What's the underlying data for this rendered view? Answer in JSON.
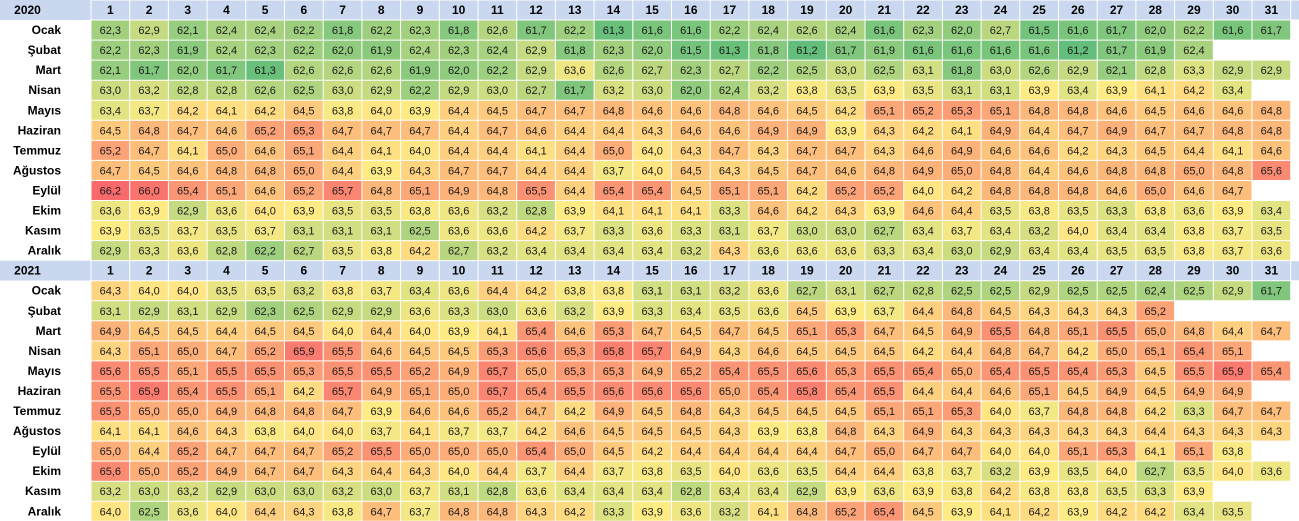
{
  "chart_data": {
    "type": "heatmap",
    "columns": [
      "1",
      "2",
      "3",
      "4",
      "5",
      "6",
      "7",
      "8",
      "9",
      "10",
      "11",
      "12",
      "13",
      "14",
      "15",
      "16",
      "17",
      "18",
      "19",
      "20",
      "21",
      "22",
      "23",
      "24",
      "25",
      "26",
      "27",
      "28",
      "29",
      "30",
      "31"
    ],
    "color_scale": {
      "low": "#63be7b",
      "mid": "#ffeb84",
      "high": "#f8696b",
      "min": 61.2,
      "mid_value": 63.9,
      "max": 66.2
    },
    "blocks": [
      {
        "year": "2020",
        "rows": [
          {
            "month": "Ocak",
            "values": [
              "62,3",
              "62,9",
              "62,1",
              "62,4",
              "62,4",
              "62,2",
              "61,8",
              "62,2",
              "62,3",
              "61,8",
              "62,6",
              "61,7",
              "62,2",
              "61,3",
              "61,6",
              "61,6",
              "62,2",
              "62,4",
              "62,6",
              "62,4",
              "61,6",
              "62,3",
              "62,0",
              "62,7",
              "61,5",
              "61,6",
              "61,7",
              "62,0",
              "62,2",
              "61,6",
              "61,7"
            ]
          },
          {
            "month": "Şubat",
            "values": [
              "62,2",
              "62,3",
              "61,9",
              "62,4",
              "62,3",
              "62,2",
              "62,0",
              "61,9",
              "62,4",
              "62,3",
              "62,4",
              "62,9",
              "61,8",
              "62,3",
              "62,0",
              "61,5",
              "61,3",
              "61,8",
              "61,2",
              "61,7",
              "61,9",
              "61,6",
              "61,6",
              "61,6",
              "61,6",
              "61,2",
              "61,7",
              "61,9",
              "62,4",
              "",
              ""
            ]
          },
          {
            "month": "Mart",
            "values": [
              "62,1",
              "61,7",
              "62,0",
              "61,7",
              "61,3",
              "62,6",
              "62,6",
              "62,6",
              "61,9",
              "62,0",
              "62,2",
              "62,9",
              "63,6",
              "62,6",
              "62,7",
              "62,3",
              "62,7",
              "62,2",
              "62,5",
              "63,0",
              "62,5",
              "63,1",
              "61,8",
              "63,0",
              "62,6",
              "62,9",
              "62,1",
              "62,8",
              "63,3",
              "62,9",
              "62,9"
            ]
          },
          {
            "month": "Nisan",
            "values": [
              "63,0",
              "63,2",
              "62,8",
              "62,8",
              "62,6",
              "62,5",
              "63,0",
              "62,9",
              "62,2",
              "62,9",
              "63,0",
              "62,7",
              "61,7",
              "63,2",
              "63,0",
              "62,0",
              "62,4",
              "63,2",
              "63,8",
              "63,5",
              "63,9",
              "63,5",
              "63,1",
              "63,1",
              "63,9",
              "63,4",
              "63,9",
              "64,1",
              "64,2",
              "63,4",
              ""
            ]
          },
          {
            "month": "Mayıs",
            "values": [
              "63,4",
              "63,7",
              "64,2",
              "64,1",
              "64,2",
              "64,5",
              "63,8",
              "64,0",
              "63,9",
              "64,4",
              "64,5",
              "64,7",
              "64,7",
              "64,8",
              "64,6",
              "64,6",
              "64,8",
              "64,6",
              "64,5",
              "64,2",
              "65,1",
              "65,2",
              "65,3",
              "65,1",
              "64,8",
              "64,8",
              "64,6",
              "64,5",
              "64,6",
              "64,6",
              "64,8"
            ]
          },
          {
            "month": "Haziran",
            "values": [
              "64,5",
              "64,8",
              "64,7",
              "64,6",
              "65,2",
              "65,3",
              "64,7",
              "64,7",
              "64,7",
              "64,4",
              "64,7",
              "64,6",
              "64,4",
              "64,4",
              "64,3",
              "64,6",
              "64,6",
              "64,9",
              "64,9",
              "63,9",
              "64,3",
              "64,2",
              "64,1",
              "64,9",
              "64,4",
              "64,7",
              "64,9",
              "64,7",
              "64,7",
              "64,8",
              "64,8"
            ]
          },
          {
            "month": "Temmuz",
            "values": [
              "65,2",
              "64,7",
              "64,1",
              "65,0",
              "64,6",
              "65,1",
              "64,4",
              "64,1",
              "64,0",
              "64,4",
              "64,4",
              "64,1",
              "64,4",
              "65,0",
              "64,0",
              "64,3",
              "64,7",
              "64,3",
              "64,7",
              "64,7",
              "64,3",
              "64,6",
              "64,9",
              "64,6",
              "64,6",
              "64,2",
              "64,3",
              "64,5",
              "64,4",
              "64,1",
              "64,6"
            ]
          },
          {
            "month": "Ağustos",
            "values": [
              "64,7",
              "64,5",
              "64,6",
              "64,8",
              "64,8",
              "65,0",
              "64,4",
              "63,9",
              "64,3",
              "64,7",
              "64,7",
              "64,4",
              "64,4",
              "63,7",
              "64,0",
              "64,5",
              "64,3",
              "64,5",
              "64,7",
              "64,6",
              "64,8",
              "64,9",
              "65,0",
              "64,8",
              "64,4",
              "64,6",
              "64,8",
              "64,8",
              "65,0",
              "64,8",
              "65,6"
            ]
          },
          {
            "month": "Eylül",
            "values": [
              "66,2",
              "66,0",
              "65,4",
              "65,1",
              "64,6",
              "65,2",
              "65,7",
              "64,8",
              "65,1",
              "64,9",
              "64,8",
              "65,5",
              "64,4",
              "65,4",
              "65,4",
              "64,5",
              "65,1",
              "65,1",
              "64,2",
              "65,2",
              "65,2",
              "64,0",
              "64,2",
              "64,8",
              "64,8",
              "64,8",
              "64,6",
              "65,0",
              "64,6",
              "64,7",
              ""
            ]
          },
          {
            "month": "Ekim",
            "values": [
              "63,6",
              "63,9",
              "62,9",
              "63,6",
              "64,0",
              "63,9",
              "63,5",
              "63,5",
              "63,8",
              "63,6",
              "63,2",
              "62,8",
              "63,9",
              "64,1",
              "64,1",
              "64,1",
              "63,3",
              "64,6",
              "64,2",
              "64,3",
              "63,9",
              "64,6",
              "64,4",
              "63,5",
              "63,8",
              "63,5",
              "63,3",
              "63,8",
              "63,6",
              "63,9",
              "63,4"
            ]
          },
          {
            "month": "Kasım",
            "values": [
              "63,9",
              "63,5",
              "63,7",
              "63,5",
              "63,7",
              "63,1",
              "63,1",
              "63,1",
              "62,5",
              "63,6",
              "63,6",
              "64,2",
              "63,7",
              "63,3",
              "63,6",
              "63,3",
              "63,1",
              "63,7",
              "63,0",
              "63,0",
              "62,7",
              "63,4",
              "63,7",
              "63,4",
              "63,2",
              "64,0",
              "63,4",
              "63,4",
              "63,8",
              "63,7",
              "63,5"
            ]
          },
          {
            "month": "Aralık",
            "values": [
              "62,9",
              "63,3",
              "63,6",
              "62,8",
              "62,2",
              "62,7",
              "63,5",
              "63,8",
              "64,2",
              "62,7",
              "63,2",
              "63,4",
              "63,4",
              "63,4",
              "63,4",
              "63,2",
              "64,3",
              "63,6",
              "63,6",
              "63,6",
              "63,3",
              "63,4",
              "63,0",
              "62,9",
              "63,4",
              "63,4",
              "63,5",
              "63,5",
              "63,8",
              "63,7",
              "63,6"
            ]
          }
        ]
      },
      {
        "year": "2021",
        "rows": [
          {
            "month": "Ocak",
            "values": [
              "64,3",
              "64,0",
              "64,0",
              "63,5",
              "63,5",
              "63,2",
              "63,8",
              "63,7",
              "63,4",
              "63,6",
              "64,4",
              "64,2",
              "63,8",
              "63,8",
              "63,1",
              "63,1",
              "63,2",
              "63,6",
              "62,7",
              "63,1",
              "62,7",
              "62,8",
              "62,5",
              "62,5",
              "62,9",
              "62,5",
              "62,5",
              "62,4",
              "62,5",
              "62,9",
              "61,7"
            ]
          },
          {
            "month": "Şubat",
            "values": [
              "63,1",
              "62,9",
              "63,1",
              "62,9",
              "62,3",
              "62,5",
              "62,9",
              "62,9",
              "63,6",
              "63,3",
              "63,0",
              "63,6",
              "63,2",
              "63,9",
              "63,3",
              "63,4",
              "63,5",
              "63,6",
              "64,5",
              "63,9",
              "63,7",
              "64,4",
              "64,8",
              "64,5",
              "64,3",
              "64,3",
              "64,3",
              "65,2",
              "",
              "",
              ""
            ]
          },
          {
            "month": "Mart",
            "values": [
              "64,9",
              "64,5",
              "64,5",
              "64,4",
              "64,5",
              "64,5",
              "64,0",
              "64,4",
              "64,0",
              "63,9",
              "64,1",
              "65,4",
              "64,6",
              "65,3",
              "64,7",
              "64,5",
              "64,7",
              "64,5",
              "65,1",
              "65,3",
              "64,7",
              "64,5",
              "64,9",
              "65,5",
              "64,8",
              "65,1",
              "65,5",
              "65,0",
              "64,8",
              "64,4",
              "64,7"
            ]
          },
          {
            "month": "Nisan",
            "values": [
              "64,3",
              "65,1",
              "65,0",
              "64,7",
              "65,2",
              "65,9",
              "65,5",
              "64,6",
              "64,5",
              "64,5",
              "65,3",
              "65,6",
              "65,3",
              "65,8",
              "65,7",
              "64,9",
              "64,3",
              "64,6",
              "64,5",
              "64,5",
              "64,5",
              "64,2",
              "64,4",
              "64,8",
              "64,7",
              "64,2",
              "65,0",
              "65,1",
              "65,4",
              "65,1",
              ""
            ]
          },
          {
            "month": "Mayıs",
            "values": [
              "65,6",
              "65,5",
              "65,1",
              "65,5",
              "65,5",
              "65,3",
              "65,5",
              "65,5",
              "65,2",
              "64,9",
              "65,7",
              "65,0",
              "65,3",
              "65,3",
              "64,9",
              "65,2",
              "65,4",
              "65,5",
              "65,6",
              "65,3",
              "65,5",
              "65,4",
              "65,0",
              "65,4",
              "65,5",
              "65,4",
              "65,3",
              "64,5",
              "65,5",
              "65,9",
              "65,4"
            ]
          },
          {
            "month": "Haziran",
            "values": [
              "65,5",
              "65,9",
              "65,4",
              "65,5",
              "65,1",
              "64,2",
              "65,7",
              "64,9",
              "65,1",
              "65,0",
              "65,7",
              "65,4",
              "65,5",
              "65,6",
              "65,6",
              "65,6",
              "65,0",
              "65,4",
              "65,8",
              "65,4",
              "65,5",
              "64,4",
              "64,4",
              "64,6",
              "65,1",
              "64,5",
              "64,9",
              "64,5",
              "64,9",
              "64,9",
              ""
            ]
          },
          {
            "month": "Temmuz",
            "values": [
              "65,5",
              "65,0",
              "65,0",
              "64,9",
              "64,8",
              "64,8",
              "64,7",
              "63,9",
              "64,6",
              "64,6",
              "65,2",
              "64,7",
              "64,2",
              "64,9",
              "64,5",
              "64,8",
              "64,3",
              "64,5",
              "64,5",
              "64,5",
              "65,1",
              "65,1",
              "65,3",
              "64,0",
              "63,7",
              "64,8",
              "64,8",
              "64,2",
              "63,3",
              "64,7",
              "64,7"
            ]
          },
          {
            "month": "Ağustos",
            "values": [
              "64,1",
              "64,1",
              "64,6",
              "64,3",
              "63,8",
              "64,0",
              "64,0",
              "63,7",
              "64,1",
              "63,7",
              "63,7",
              "64,2",
              "64,6",
              "64,5",
              "64,5",
              "64,5",
              "64,3",
              "63,9",
              "63,8",
              "64,8",
              "64,3",
              "64,9",
              "64,3",
              "64,3",
              "64,3",
              "64,3",
              "64,3",
              "64,4",
              "64,3",
              "64,3",
              "64,3"
            ]
          },
          {
            "month": "Eylül",
            "values": [
              "65,0",
              "64,4",
              "65,2",
              "64,7",
              "64,7",
              "64,7",
              "65,2",
              "65,5",
              "65,0",
              "65,0",
              "65,0",
              "65,4",
              "65,0",
              "64,5",
              "64,2",
              "64,4",
              "64,4",
              "64,4",
              "64,4",
              "64,7",
              "65,0",
              "64,7",
              "64,7",
              "64,0",
              "64,0",
              "65,1",
              "65,3",
              "64,1",
              "65,1",
              "63,8",
              ""
            ]
          },
          {
            "month": "Ekim",
            "values": [
              "65,6",
              "65,0",
              "65,2",
              "64,9",
              "64,7",
              "64,7",
              "64,3",
              "64,4",
              "64,3",
              "64,0",
              "64,4",
              "63,7",
              "64,4",
              "63,7",
              "63,8",
              "63,5",
              "64,0",
              "63,6",
              "63,5",
              "64,4",
              "64,4",
              "63,8",
              "63,7",
              "63,2",
              "63,9",
              "63,5",
              "64,0",
              "62,7",
              "63,5",
              "64,0",
              "63,6"
            ]
          },
          {
            "month": "Kasım",
            "values": [
              "63,2",
              "63,0",
              "63,2",
              "62,9",
              "63,0",
              "63,0",
              "63,2",
              "63,0",
              "63,7",
              "63,1",
              "62,8",
              "63,6",
              "63,4",
              "63,4",
              "63,4",
              "62,8",
              "63,4",
              "63,4",
              "62,9",
              "63,9",
              "63,6",
              "63,9",
              "63,8",
              "64,2",
              "63,8",
              "63,8",
              "63,5",
              "63,3",
              "63,9",
              "",
              ""
            ]
          },
          {
            "month": "Aralık",
            "values": [
              "64,0",
              "62,5",
              "63,6",
              "64,0",
              "64,4",
              "64,3",
              "63,8",
              "64,7",
              "63,7",
              "64,8",
              "64,8",
              "64,3",
              "64,2",
              "63,3",
              "63,9",
              "63,6",
              "63,2",
              "64,1",
              "64,8",
              "65,2",
              "65,4",
              "64,5",
              "63,9",
              "64,1",
              "64,2",
              "63,9",
              "64,2",
              "64,2",
              "63,4",
              "63,5",
              ""
            ]
          }
        ]
      }
    ]
  }
}
